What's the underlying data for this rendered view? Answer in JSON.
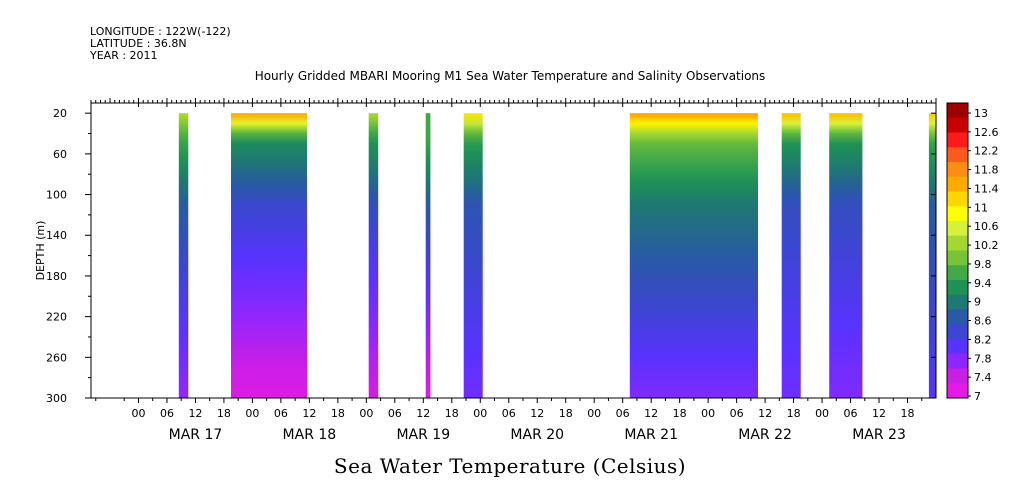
{
  "header": {
    "longitude": "LONGITUDE : 122W(-122)",
    "latitude": "LATITUDE : 36.8N",
    "year": "YEAR : 2011"
  },
  "chart_data": {
    "type": "heatmap",
    "title": "Hourly Gridded MBARI Mooring M1 Sea Water Temperature and Salinity Observations",
    "xlabel": "",
    "ylabel": "DEPTH (m)",
    "colorbar_title": "Sea Water Temperature (Celsius)",
    "y_axis": {
      "range": [
        10,
        300
      ],
      "inverted": true,
      "ticks": [
        20,
        60,
        100,
        140,
        180,
        220,
        260,
        300
      ]
    },
    "x_axis": {
      "range_hours": [
        -10,
        168
      ],
      "hour_ticks": [
        "00",
        "06",
        "12",
        "18",
        "00",
        "06",
        "12",
        "18",
        "00",
        "06",
        "12",
        "18",
        "00",
        "06",
        "12",
        "18",
        "00",
        "06",
        "12",
        "18",
        "00",
        "06",
        "12",
        "18",
        "00",
        "06",
        "12",
        "18"
      ],
      "day_labels": [
        "MAR 17",
        "MAR 18",
        "MAR 19",
        "MAR 20",
        "MAR 21",
        "MAR 22",
        "MAR 23"
      ]
    },
    "colorbar": {
      "levels": [
        "13",
        "12.6",
        "12.2",
        "11.8",
        "11.4",
        "11",
        "10.6",
        "10.2",
        "9.8",
        "9.4",
        "9",
        "8.6",
        "8.2",
        "7.8",
        "7.4",
        "7"
      ],
      "colors": [
        "#9e0000",
        "#c80000",
        "#ff1a1a",
        "#ff5a1e",
        "#ff8c14",
        "#ffaa00",
        "#ffd700",
        "#ffff00",
        "#d7f03c",
        "#a5d732",
        "#78c337",
        "#41aa46",
        "#1e9155",
        "#1e7873",
        "#285aa5",
        "#3c46d2",
        "#5a32ff",
        "#8c28ff",
        "#c81ee6",
        "#e619e6"
      ]
    },
    "segments": [
      {
        "start": 8.5,
        "end": 10.5,
        "surface": 10.2,
        "mid": 8.6,
        "bottom": 7.6
      },
      {
        "start": 19.5,
        "end": 35.5,
        "surface": 11.5,
        "mid": 8.3,
        "bottom": 7.1
      },
      {
        "start": 48.5,
        "end": 50.5,
        "surface": 10.2,
        "mid": 8.4,
        "bottom": 7.2
      },
      {
        "start": 60.5,
        "end": 61.5,
        "surface": 9.5,
        "mid": 8.6,
        "bottom": 7.1
      },
      {
        "start": 68.5,
        "end": 72.5,
        "surface": 11.0,
        "mid": 8.5,
        "bottom": 7.8
      },
      {
        "start": 103.5,
        "end": 130.5,
        "surface": 11.6,
        "mid": 8.9,
        "bottom": 7.7
      },
      {
        "start": 135.5,
        "end": 139.5,
        "surface": 11.3,
        "mid": 8.4,
        "bottom": 7.8
      },
      {
        "start": 145.5,
        "end": 152.5,
        "surface": 11.3,
        "mid": 8.4,
        "bottom": 7.7
      },
      {
        "start": 166.5,
        "end": 168.0,
        "surface": 11.2,
        "mid": 8.6,
        "bottom": 8.0
      }
    ]
  }
}
